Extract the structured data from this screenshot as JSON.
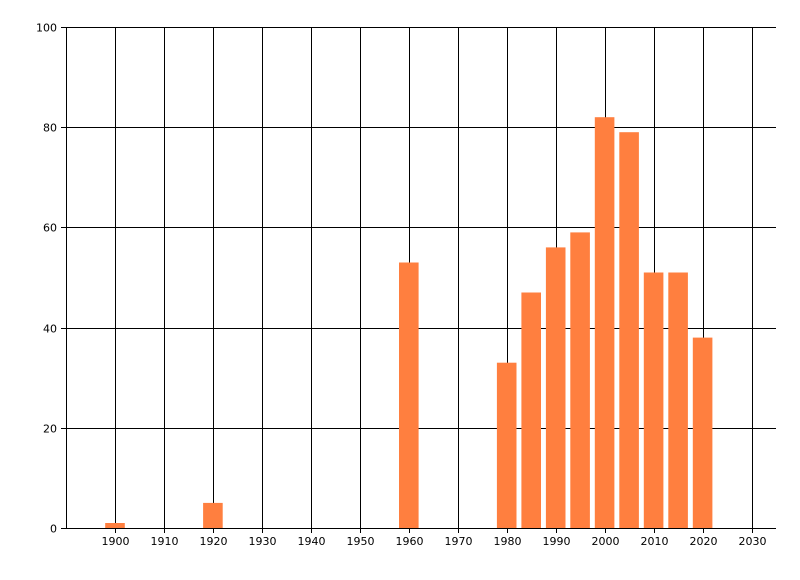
{
  "chart_data": {
    "type": "bar",
    "title": "",
    "xlabel": "",
    "ylabel": "",
    "x": [
      1900,
      1920,
      1960,
      1980,
      1985,
      1990,
      1995,
      2000,
      2005,
      2010,
      2015,
      2020
    ],
    "values": [
      1,
      5,
      53,
      33,
      47,
      56,
      59,
      82,
      79,
      51,
      51,
      38
    ],
    "bar_width": 4,
    "xlim": [
      1890,
      2035
    ],
    "ylim": [
      0,
      100
    ],
    "xticks": [
      1900,
      1910,
      1920,
      1930,
      1940,
      1950,
      1960,
      1970,
      1980,
      1990,
      2000,
      2010,
      2020,
      2030
    ],
    "yticks": [
      0,
      20,
      40,
      60,
      80,
      100
    ],
    "grid": true,
    "bar_color": "#FF7F3F",
    "grid_color": "#000000"
  }
}
